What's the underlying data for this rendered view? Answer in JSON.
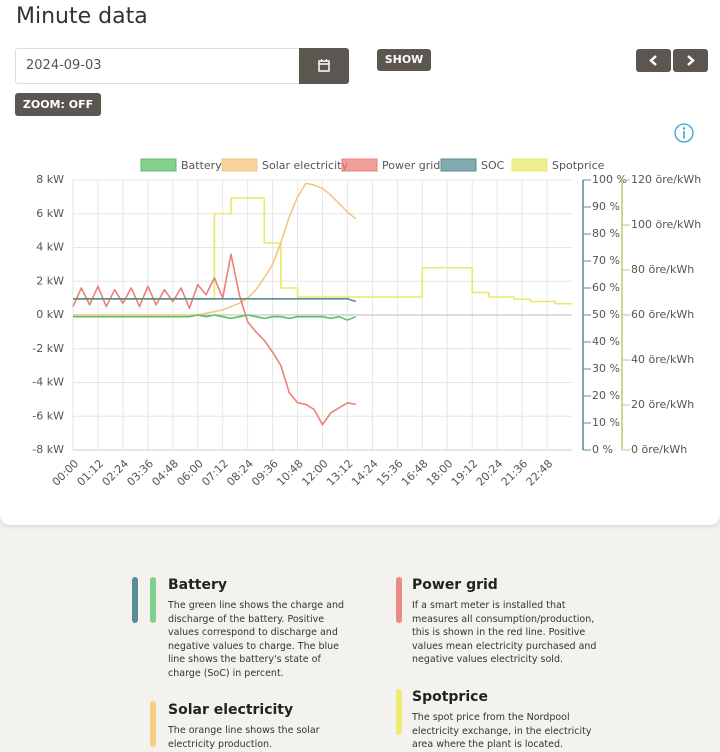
{
  "header": {
    "title": "Minute data"
  },
  "controls": {
    "date": "2024-09-03",
    "show": "SHOW",
    "zoom": "ZOOM: OFF"
  },
  "chart_data": {
    "type": "line",
    "categories": [
      "00:00",
      null,
      null,
      "01:12",
      null,
      null,
      "02:24",
      null,
      null,
      "03:36",
      null,
      null,
      "04:48",
      null,
      null,
      "06:00",
      null,
      null,
      "07:12",
      null,
      null,
      "08:24",
      null,
      null,
      "09:36",
      null,
      null,
      "10:48",
      null,
      null,
      "12:00",
      null,
      null,
      "13:12",
      null,
      null,
      "14:24",
      null,
      null,
      "15:36",
      null,
      null,
      "16:48",
      null,
      null,
      "18:00",
      null,
      null,
      "19:12",
      null,
      null,
      "20:24",
      null,
      null,
      "21:36",
      null,
      null,
      "22:48",
      null,
      null
    ],
    "ylim": [
      -8,
      8
    ],
    "yticks": [
      {
        "value": -8,
        "label": "-8 kW"
      },
      {
        "value": -6,
        "label": "-6 kW"
      },
      {
        "value": -4,
        "label": "-4 kW"
      },
      {
        "value": -2,
        "label": "-2 kW"
      },
      {
        "value": 0,
        "label": "0 kW"
      },
      {
        "value": 2,
        "label": "2 kW"
      },
      {
        "value": 4,
        "label": "4 kW"
      },
      {
        "value": 6,
        "label": "6 kW"
      },
      {
        "value": 8,
        "label": "8 kW"
      }
    ],
    "y2lim": [
      0,
      100
    ],
    "y2ticks": [
      {
        "value": 0,
        "label": "0 %"
      },
      {
        "value": 10,
        "label": "10 %"
      },
      {
        "value": 20,
        "label": "20 %"
      },
      {
        "value": 30,
        "label": "30 %"
      },
      {
        "value": 40,
        "label": "40 %"
      },
      {
        "value": 50,
        "label": "50 %"
      },
      {
        "value": 60,
        "label": "60 %"
      },
      {
        "value": 70,
        "label": "70 %"
      },
      {
        "value": 80,
        "label": "80 %"
      },
      {
        "value": 90,
        "label": "90 %"
      },
      {
        "value": 100,
        "label": "100 %"
      }
    ],
    "y3lim": [
      0,
      120
    ],
    "y3ticks": [
      {
        "value": 0,
        "label": "0 öre/kWh"
      },
      {
        "value": 20,
        "label": "20 öre/kWh"
      },
      {
        "value": 40,
        "label": "40 öre/kWh"
      },
      {
        "value": 60,
        "label": "60 öre/kWh"
      },
      {
        "value": 80,
        "label": "80 öre/kWh"
      },
      {
        "value": 100,
        "label": "100 öre/kWh"
      },
      {
        "value": 120,
        "label": "120 öre/kWh"
      }
    ],
    "grid": true,
    "series": [
      {
        "name": "Battery",
        "color": "#5cbf6a",
        "axis": "y",
        "values": [
          -0.1,
          -0.1,
          -0.1,
          -0.1,
          -0.1,
          -0.1,
          -0.1,
          -0.1,
          -0.1,
          -0.1,
          -0.1,
          -0.1,
          -0.1,
          -0.1,
          -0.1,
          0.0,
          -0.1,
          0.0,
          -0.1,
          -0.2,
          -0.1,
          0.0,
          -0.1,
          -0.2,
          -0.1,
          -0.1,
          -0.2,
          -0.1,
          -0.1,
          -0.1,
          -0.1,
          -0.2,
          -0.1,
          -0.3,
          -0.1,
          null,
          null,
          null,
          null,
          null,
          null,
          null,
          null,
          null,
          null,
          null,
          null,
          null,
          null,
          null,
          null,
          null,
          null,
          null,
          null,
          null,
          null,
          null,
          null,
          null
        ]
      },
      {
        "name": "Solar electricity",
        "color": "#f4c57e",
        "axis": "y",
        "values": [
          0,
          0,
          0,
          0,
          0,
          0,
          0,
          0,
          0,
          0,
          0,
          0,
          0,
          0,
          0,
          0,
          0.1,
          0.2,
          0.3,
          0.5,
          0.7,
          1.0,
          1.5,
          2.2,
          3.0,
          4.3,
          5.8,
          7.0,
          7.8,
          7.7,
          7.5,
          7.1,
          6.6,
          6.1,
          5.7,
          null,
          null,
          null,
          null,
          null,
          null,
          null,
          null,
          null,
          null,
          null,
          null,
          null,
          null,
          null,
          null,
          null,
          null,
          null,
          null,
          null,
          null,
          null,
          null,
          null
        ]
      },
      {
        "name": "Power grid",
        "color": "#ec7f78",
        "axis": "y",
        "values": [
          0.5,
          1.6,
          0.6,
          1.7,
          0.5,
          1.5,
          0.7,
          1.6,
          0.5,
          1.7,
          0.6,
          1.5,
          0.8,
          1.6,
          0.4,
          1.8,
          1.2,
          2.2,
          1.0,
          3.6,
          1.2,
          -0.4,
          -1.0,
          -1.5,
          -2.2,
          -3.0,
          -4.6,
          -5.2,
          -5.3,
          -5.6,
          -6.5,
          -5.8,
          -5.5,
          -5.2,
          -5.3,
          null,
          null,
          null,
          null,
          null,
          null,
          null,
          null,
          null,
          null,
          null,
          null,
          null,
          null,
          null,
          null,
          null,
          null,
          null,
          null,
          null,
          null,
          null,
          null,
          null
        ]
      },
      {
        "name": "SOC",
        "color": "#5a8c95",
        "axis": "y2",
        "values": [
          56,
          56,
          56,
          56,
          56,
          56,
          56,
          56,
          56,
          56,
          56,
          56,
          56,
          56,
          56,
          56,
          56,
          56,
          56,
          56,
          56,
          56,
          56,
          56,
          56,
          56,
          56,
          56,
          56,
          56,
          56,
          56,
          56,
          56,
          55,
          null,
          null,
          null,
          null,
          null,
          null,
          null,
          null,
          null,
          null,
          null,
          null,
          null,
          null,
          null,
          null,
          null,
          null,
          null,
          null,
          null,
          null,
          null,
          null,
          null
        ]
      },
      {
        "name": "Spotprice",
        "color": "#e9e86a",
        "axis": "y3",
        "step": true,
        "values": [
          67,
          67,
          67,
          67,
          67,
          67,
          67,
          67,
          67,
          67,
          67,
          67,
          67,
          67,
          67,
          67,
          67,
          105,
          105,
          112,
          112,
          112,
          112,
          92,
          92,
          72,
          72,
          68,
          68,
          68,
          68,
          68,
          68,
          68,
          68,
          68,
          68,
          68,
          68,
          68,
          68,
          68,
          81,
          81,
          81,
          81,
          81,
          81,
          70,
          70,
          68,
          68,
          68,
          67,
          67,
          66,
          66,
          66,
          65,
          65
        ]
      }
    ]
  },
  "info": [
    {
      "title": "Battery",
      "text": "The green line shows the charge and discharge of the battery. Positive values correspond to discharge and negative values to charge. The blue line shows the battery's state of charge (SoC) in percent."
    },
    {
      "title": "Power grid",
      "text": "If a smart meter is installed that measures all consumption/production, this is shown in the red line. Positive values mean electricity purchased and negative values electricity sold."
    },
    {
      "title": "Solar electricity",
      "text": "The orange line shows the solar electricity production."
    },
    {
      "title": "Spotprice",
      "text": "The spot price from the Nordpool electricity exchange, in the electricity area where the plant is located."
    }
  ]
}
